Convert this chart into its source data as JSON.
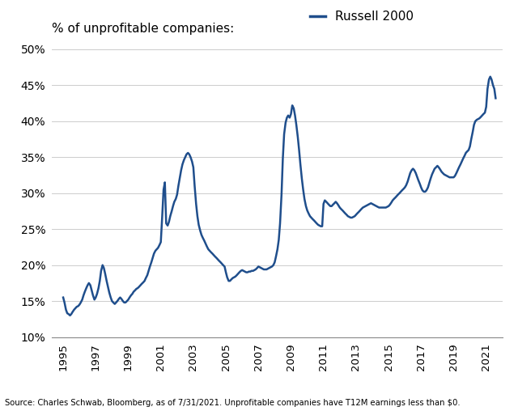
{
  "line_color": "#1f4e8c",
  "line_width": 1.8,
  "background_color": "#ffffff",
  "ylim": [
    0.1,
    0.5
  ],
  "xlim": [
    1994.3,
    2022.0
  ],
  "yticks": [
    0.1,
    0.15,
    0.2,
    0.25,
    0.3,
    0.35,
    0.4,
    0.45,
    0.5
  ],
  "xticks": [
    1995,
    1997,
    1999,
    2001,
    2003,
    2005,
    2007,
    2009,
    2011,
    2013,
    2015,
    2017,
    2019,
    2021
  ],
  "title_left": "% of unprofitable companies:",
  "legend_label": "Russell 2000",
  "source_text": "Source: Charles Schwab, Bloomberg, as of 7/31/2021. Unprofitable companies have T12M earnings less than $0.",
  "series": {
    "dates": [
      1995.0,
      1995.08,
      1995.17,
      1995.25,
      1995.33,
      1995.42,
      1995.5,
      1995.58,
      1995.67,
      1995.75,
      1995.83,
      1995.92,
      1996.0,
      1996.08,
      1996.17,
      1996.25,
      1996.33,
      1996.42,
      1996.5,
      1996.58,
      1996.67,
      1996.75,
      1996.83,
      1996.92,
      1997.0,
      1997.08,
      1997.17,
      1997.25,
      1997.33,
      1997.42,
      1997.5,
      1997.58,
      1997.67,
      1997.75,
      1997.83,
      1997.92,
      1998.0,
      1998.08,
      1998.17,
      1998.25,
      1998.33,
      1998.42,
      1998.5,
      1998.58,
      1998.67,
      1998.75,
      1998.83,
      1998.92,
      1999.0,
      1999.08,
      1999.17,
      1999.25,
      1999.33,
      1999.42,
      1999.5,
      1999.58,
      1999.67,
      1999.75,
      1999.83,
      1999.92,
      2000.0,
      2000.08,
      2000.17,
      2000.25,
      2000.33,
      2000.42,
      2000.5,
      2000.58,
      2000.67,
      2000.75,
      2000.83,
      2000.92,
      2001.0,
      2001.08,
      2001.17,
      2001.25,
      2001.33,
      2001.42,
      2001.5,
      2001.58,
      2001.67,
      2001.75,
      2001.83,
      2001.92,
      2002.0,
      2002.08,
      2002.17,
      2002.25,
      2002.33,
      2002.42,
      2002.5,
      2002.58,
      2002.67,
      2002.75,
      2002.83,
      2002.92,
      2003.0,
      2003.08,
      2003.17,
      2003.25,
      2003.33,
      2003.42,
      2003.5,
      2003.58,
      2003.67,
      2003.75,
      2003.83,
      2003.92,
      2004.0,
      2004.08,
      2004.17,
      2004.25,
      2004.33,
      2004.42,
      2004.5,
      2004.58,
      2004.67,
      2004.75,
      2004.83,
      2004.92,
      2005.0,
      2005.08,
      2005.17,
      2005.25,
      2005.33,
      2005.42,
      2005.5,
      2005.58,
      2005.67,
      2005.75,
      2005.83,
      2005.92,
      2006.0,
      2006.08,
      2006.17,
      2006.25,
      2006.33,
      2006.42,
      2006.5,
      2006.58,
      2006.67,
      2006.75,
      2006.83,
      2006.92,
      2007.0,
      2007.08,
      2007.17,
      2007.25,
      2007.33,
      2007.42,
      2007.5,
      2007.58,
      2007.67,
      2007.75,
      2007.83,
      2007.92,
      2008.0,
      2008.08,
      2008.17,
      2008.25,
      2008.33,
      2008.42,
      2008.5,
      2008.58,
      2008.67,
      2008.75,
      2008.83,
      2008.92,
      2009.0,
      2009.08,
      2009.17,
      2009.25,
      2009.33,
      2009.42,
      2009.5,
      2009.58,
      2009.67,
      2009.75,
      2009.83,
      2009.92,
      2010.0,
      2010.08,
      2010.17,
      2010.25,
      2010.33,
      2010.42,
      2010.5,
      2010.58,
      2010.67,
      2010.75,
      2010.83,
      2010.92,
      2011.0,
      2011.08,
      2011.17,
      2011.25,
      2011.33,
      2011.42,
      2011.5,
      2011.58,
      2011.67,
      2011.75,
      2011.83,
      2011.92,
      2012.0,
      2012.08,
      2012.17,
      2012.25,
      2012.33,
      2012.42,
      2012.5,
      2012.58,
      2012.67,
      2012.75,
      2012.83,
      2012.92,
      2013.0,
      2013.08,
      2013.17,
      2013.25,
      2013.33,
      2013.42,
      2013.5,
      2013.58,
      2013.67,
      2013.75,
      2013.83,
      2013.92,
      2014.0,
      2014.08,
      2014.17,
      2014.25,
      2014.33,
      2014.42,
      2014.5,
      2014.58,
      2014.67,
      2014.75,
      2014.83,
      2014.92,
      2015.0,
      2015.08,
      2015.17,
      2015.25,
      2015.33,
      2015.42,
      2015.5,
      2015.58,
      2015.67,
      2015.75,
      2015.83,
      2015.92,
      2016.0,
      2016.08,
      2016.17,
      2016.25,
      2016.33,
      2016.42,
      2016.5,
      2016.58,
      2016.67,
      2016.75,
      2016.83,
      2016.92,
      2017.0,
      2017.08,
      2017.17,
      2017.25,
      2017.33,
      2017.42,
      2017.5,
      2017.58,
      2017.67,
      2017.75,
      2017.83,
      2017.92,
      2018.0,
      2018.08,
      2018.17,
      2018.25,
      2018.33,
      2018.42,
      2018.5,
      2018.58,
      2018.67,
      2018.75,
      2018.83,
      2018.92,
      2019.0,
      2019.08,
      2019.17,
      2019.25,
      2019.33,
      2019.42,
      2019.5,
      2019.58,
      2019.67,
      2019.75,
      2019.83,
      2019.92,
      2020.0,
      2020.08,
      2020.17,
      2020.25,
      2020.33,
      2020.42,
      2020.5,
      2020.58,
      2020.67,
      2020.75,
      2020.83,
      2020.92,
      2021.0,
      2021.08,
      2021.17,
      2021.25,
      2021.33,
      2021.42,
      2021.5,
      2021.58
    ],
    "values": [
      0.155,
      0.148,
      0.138,
      0.133,
      0.132,
      0.13,
      0.132,
      0.135,
      0.138,
      0.14,
      0.142,
      0.143,
      0.145,
      0.148,
      0.152,
      0.158,
      0.163,
      0.168,
      0.172,
      0.175,
      0.172,
      0.165,
      0.158,
      0.152,
      0.155,
      0.16,
      0.168,
      0.178,
      0.192,
      0.2,
      0.196,
      0.188,
      0.178,
      0.17,
      0.162,
      0.155,
      0.15,
      0.148,
      0.146,
      0.148,
      0.15,
      0.153,
      0.155,
      0.153,
      0.15,
      0.148,
      0.148,
      0.15,
      0.152,
      0.155,
      0.158,
      0.16,
      0.163,
      0.165,
      0.167,
      0.168,
      0.17,
      0.172,
      0.174,
      0.176,
      0.178,
      0.182,
      0.186,
      0.192,
      0.198,
      0.204,
      0.21,
      0.216,
      0.22,
      0.222,
      0.224,
      0.228,
      0.232,
      0.265,
      0.305,
      0.315,
      0.258,
      0.255,
      0.26,
      0.268,
      0.275,
      0.282,
      0.288,
      0.292,
      0.298,
      0.31,
      0.322,
      0.332,
      0.34,
      0.346,
      0.35,
      0.354,
      0.356,
      0.354,
      0.35,
      0.344,
      0.336,
      0.31,
      0.285,
      0.268,
      0.256,
      0.248,
      0.242,
      0.238,
      0.234,
      0.23,
      0.226,
      0.222,
      0.22,
      0.218,
      0.216,
      0.214,
      0.212,
      0.21,
      0.208,
      0.206,
      0.204,
      0.202,
      0.2,
      0.198,
      0.19,
      0.183,
      0.178,
      0.178,
      0.18,
      0.182,
      0.183,
      0.184,
      0.186,
      0.188,
      0.19,
      0.192,
      0.193,
      0.192,
      0.191,
      0.19,
      0.19,
      0.191,
      0.191,
      0.192,
      0.192,
      0.193,
      0.194,
      0.196,
      0.198,
      0.197,
      0.196,
      0.195,
      0.194,
      0.194,
      0.194,
      0.195,
      0.196,
      0.197,
      0.198,
      0.2,
      0.204,
      0.212,
      0.222,
      0.235,
      0.258,
      0.298,
      0.348,
      0.382,
      0.398,
      0.405,
      0.408,
      0.405,
      0.41,
      0.422,
      0.418,
      0.408,
      0.395,
      0.378,
      0.36,
      0.34,
      0.32,
      0.305,
      0.292,
      0.282,
      0.276,
      0.272,
      0.268,
      0.266,
      0.264,
      0.262,
      0.26,
      0.258,
      0.256,
      0.255,
      0.254,
      0.254,
      0.285,
      0.29,
      0.288,
      0.286,
      0.284,
      0.282,
      0.282,
      0.284,
      0.286,
      0.288,
      0.286,
      0.283,
      0.28,
      0.278,
      0.276,
      0.274,
      0.272,
      0.27,
      0.268,
      0.267,
      0.266,
      0.266,
      0.267,
      0.268,
      0.27,
      0.272,
      0.274,
      0.276,
      0.278,
      0.28,
      0.281,
      0.282,
      0.283,
      0.284,
      0.285,
      0.286,
      0.285,
      0.284,
      0.283,
      0.282,
      0.281,
      0.28,
      0.28,
      0.28,
      0.28,
      0.28,
      0.28,
      0.281,
      0.282,
      0.284,
      0.287,
      0.29,
      0.292,
      0.294,
      0.296,
      0.298,
      0.3,
      0.302,
      0.304,
      0.306,
      0.308,
      0.311,
      0.316,
      0.322,
      0.328,
      0.332,
      0.334,
      0.332,
      0.328,
      0.323,
      0.318,
      0.313,
      0.308,
      0.304,
      0.302,
      0.302,
      0.304,
      0.308,
      0.314,
      0.32,
      0.326,
      0.33,
      0.334,
      0.336,
      0.338,
      0.336,
      0.333,
      0.33,
      0.328,
      0.326,
      0.325,
      0.324,
      0.323,
      0.322,
      0.322,
      0.322,
      0.322,
      0.324,
      0.328,
      0.332,
      0.336,
      0.34,
      0.344,
      0.348,
      0.352,
      0.356,
      0.358,
      0.36,
      0.365,
      0.375,
      0.385,
      0.395,
      0.4,
      0.402,
      0.403,
      0.404,
      0.406,
      0.408,
      0.41,
      0.412,
      0.42,
      0.445,
      0.458,
      0.462,
      0.458,
      0.45,
      0.445,
      0.432
    ]
  }
}
